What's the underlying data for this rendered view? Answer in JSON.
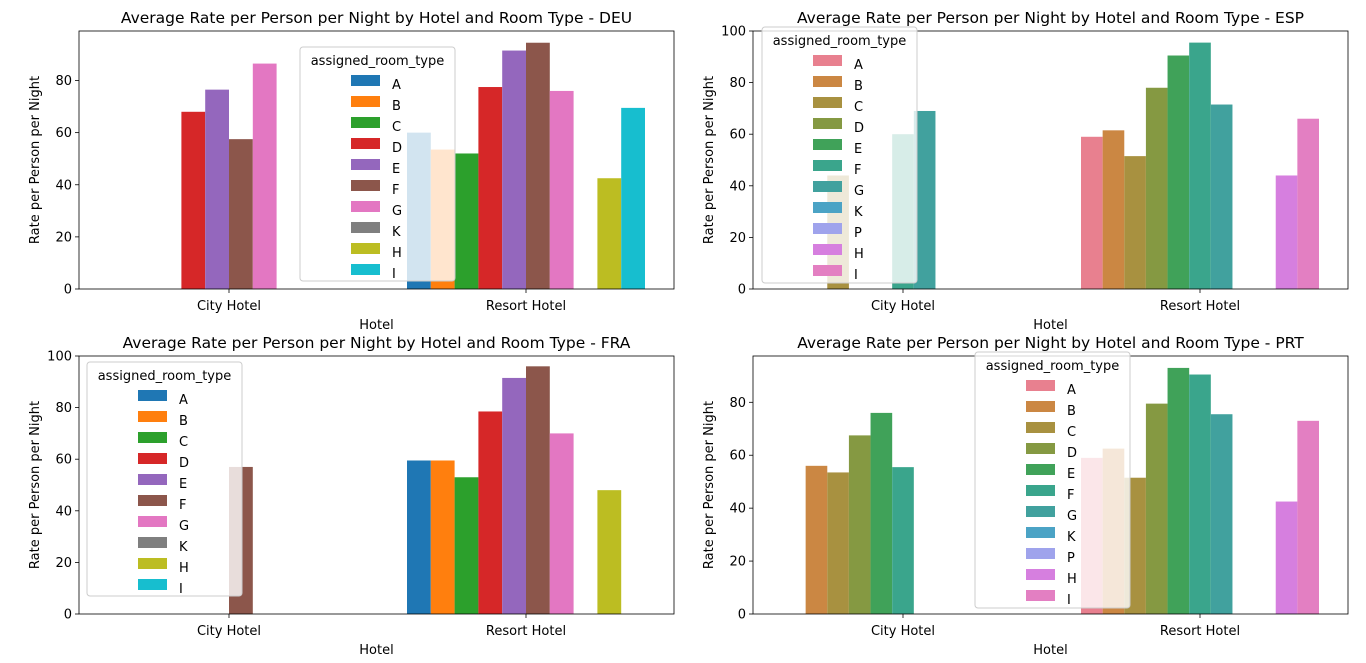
{
  "chart_data": [
    {
      "type": "bar",
      "title": "Average Rate per Person per Night by Hotel and Room Type - DEU",
      "xlabel": "Hotel",
      "ylabel": "Rate per Person per Night",
      "categories": [
        "City Hotel",
        "Resort Hotel"
      ],
      "ylim": [
        0,
        99
      ],
      "yticks": [
        "0",
        "20",
        "40",
        "60",
        "80"
      ],
      "legend": {
        "title": "assigned_room_type",
        "placement": "upper center"
      },
      "series": [
        {
          "name": "A",
          "color": "#1f77b4",
          "values": [
            null,
            60
          ]
        },
        {
          "name": "B",
          "color": "#ff7f0e",
          "values": [
            null,
            53.5
          ]
        },
        {
          "name": "C",
          "color": "#2ca02c",
          "values": [
            null,
            52
          ]
        },
        {
          "name": "D",
          "color": "#d62728",
          "values": [
            68,
            77.5
          ]
        },
        {
          "name": "E",
          "color": "#9467bd",
          "values": [
            76.5,
            91.5
          ]
        },
        {
          "name": "F",
          "color": "#8c564b",
          "values": [
            57.5,
            94.5
          ]
        },
        {
          "name": "G",
          "color": "#e377c2",
          "values": [
            86.5,
            76
          ]
        },
        {
          "name": "K",
          "color": "#7f7f7f",
          "values": [
            null,
            null
          ]
        },
        {
          "name": "H",
          "color": "#bcbd22",
          "values": [
            null,
            42.5
          ]
        },
        {
          "name": "I",
          "color": "#17becf",
          "values": [
            null,
            69.5
          ]
        }
      ]
    },
    {
      "type": "bar",
      "title": "Average Rate per Person per Night by Hotel and Room Type - ESP",
      "xlabel": "Hotel",
      "ylabel": "Rate per Person per Night",
      "categories": [
        "City Hotel",
        "Resort Hotel"
      ],
      "ylim": [
        0,
        100
      ],
      "yticks": [
        "0",
        "20",
        "40",
        "60",
        "80",
        "100"
      ],
      "legend": {
        "title": "assigned_room_type",
        "placement": "upper left"
      },
      "series": [
        {
          "name": "A",
          "color": "#e8808f",
          "values": [
            null,
            59
          ]
        },
        {
          "name": "B",
          "color": "#cb8743",
          "values": [
            null,
            61.5
          ]
        },
        {
          "name": "C",
          "color": "#a89140",
          "values": [
            44,
            51.5
          ]
        },
        {
          "name": "D",
          "color": "#859942",
          "values": [
            null,
            78
          ]
        },
        {
          "name": "E",
          "color": "#40a259",
          "values": [
            null,
            90.5
          ]
        },
        {
          "name": "F",
          "color": "#3aa58c",
          "values": [
            60,
            95.5
          ]
        },
        {
          "name": "G",
          "color": "#41a19e",
          "values": [
            69,
            71.5
          ]
        },
        {
          "name": "K",
          "color": "#4ba3c5",
          "values": [
            null,
            null
          ]
        },
        {
          "name": "P",
          "color": "#9fa3ec",
          "values": [
            null,
            null
          ]
        },
        {
          "name": "H",
          "color": "#d67fdf",
          "values": [
            null,
            44
          ]
        },
        {
          "name": "I",
          "color": "#e37fc2",
          "values": [
            null,
            66
          ]
        }
      ]
    },
    {
      "type": "bar",
      "title": "Average Rate per Person per Night by Hotel and Room Type - FRA",
      "xlabel": "Hotel",
      "ylabel": "Rate per Person per Night",
      "categories": [
        "City Hotel",
        "Resort Hotel"
      ],
      "ylim": [
        0,
        100
      ],
      "yticks": [
        "0",
        "20",
        "40",
        "60",
        "80",
        "100"
      ],
      "legend": {
        "title": "assigned_room_type",
        "placement": "upper left"
      },
      "series": [
        {
          "name": "A",
          "color": "#1f77b4",
          "values": [
            null,
            59.5
          ]
        },
        {
          "name": "B",
          "color": "#ff7f0e",
          "values": [
            null,
            59.5
          ]
        },
        {
          "name": "C",
          "color": "#2ca02c",
          "values": [
            null,
            53
          ]
        },
        {
          "name": "D",
          "color": "#d62728",
          "values": [
            null,
            78.5
          ]
        },
        {
          "name": "E",
          "color": "#9467bd",
          "values": [
            null,
            91.5
          ]
        },
        {
          "name": "F",
          "color": "#8c564b",
          "values": [
            57,
            96
          ]
        },
        {
          "name": "G",
          "color": "#e377c2",
          "values": [
            null,
            70
          ]
        },
        {
          "name": "K",
          "color": "#7f7f7f",
          "values": [
            null,
            null
          ]
        },
        {
          "name": "H",
          "color": "#bcbd22",
          "values": [
            null,
            48
          ]
        },
        {
          "name": "I",
          "color": "#17becf",
          "values": [
            null,
            null
          ]
        }
      ]
    },
    {
      "type": "bar",
      "title": "Average Rate per Person per Night by Hotel and Room Type - PRT",
      "xlabel": "Hotel",
      "ylabel": "Rate per Person per Night",
      "categories": [
        "City Hotel",
        "Resort Hotel"
      ],
      "ylim": [
        0,
        97.5
      ],
      "yticks": [
        "0",
        "20",
        "40",
        "60",
        "80"
      ],
      "legend": {
        "title": "assigned_room_type",
        "placement": "upper center"
      },
      "series": [
        {
          "name": "A",
          "color": "#e8808f",
          "values": [
            null,
            59
          ]
        },
        {
          "name": "B",
          "color": "#cb8743",
          "values": [
            56,
            62.5
          ]
        },
        {
          "name": "C",
          "color": "#a89140",
          "values": [
            53.5,
            51.5
          ]
        },
        {
          "name": "D",
          "color": "#859942",
          "values": [
            67.5,
            79.5
          ]
        },
        {
          "name": "E",
          "color": "#40a259",
          "values": [
            76,
            93
          ]
        },
        {
          "name": "F",
          "color": "#3aa58c",
          "values": [
            55.5,
            90.5
          ]
        },
        {
          "name": "G",
          "color": "#41a19e",
          "values": [
            null,
            75.5
          ]
        },
        {
          "name": "K",
          "color": "#4ba3c5",
          "values": [
            null,
            null
          ]
        },
        {
          "name": "P",
          "color": "#9fa3ec",
          "values": [
            null,
            null
          ]
        },
        {
          "name": "H",
          "color": "#d67fdf",
          "values": [
            null,
            42.5
          ]
        },
        {
          "name": "I",
          "color": "#e37fc2",
          "values": [
            null,
            73
          ]
        }
      ]
    }
  ]
}
